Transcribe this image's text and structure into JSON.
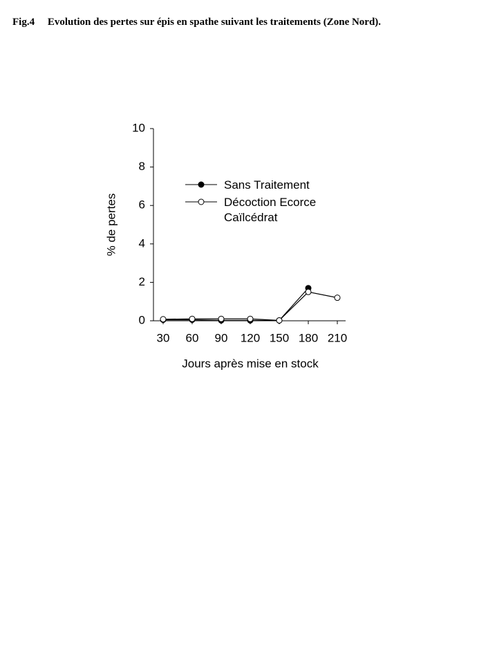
{
  "caption": "Fig.4     Evolution des pertes sur épis en spathe suivant les traitements (Zone Nord).",
  "chart_data": {
    "type": "line",
    "ylabel": "% de pertes",
    "xlabel": "Jours après mise en stock",
    "categories": [
      "30",
      "60",
      "90",
      "120",
      "150",
      "180",
      "210"
    ],
    "series": [
      {
        "name": "Sans Traitement",
        "color": "#000000",
        "marker_fill": "#000000",
        "values": [
          0.05,
          0.05,
          0.02,
          0.02,
          0.02,
          1.7,
          null
        ]
      },
      {
        "name": "Décoction Ecorce Caïlcédrat",
        "color": "#000000",
        "marker_fill": "#ffffff",
        "values": [
          0.08,
          0.1,
          0.1,
          0.1,
          0.02,
          1.5,
          1.2
        ]
      }
    ],
    "ylim": [
      0,
      10
    ],
    "yticks": [
      0,
      2,
      4,
      6,
      8,
      10
    ],
    "grid": false
  }
}
